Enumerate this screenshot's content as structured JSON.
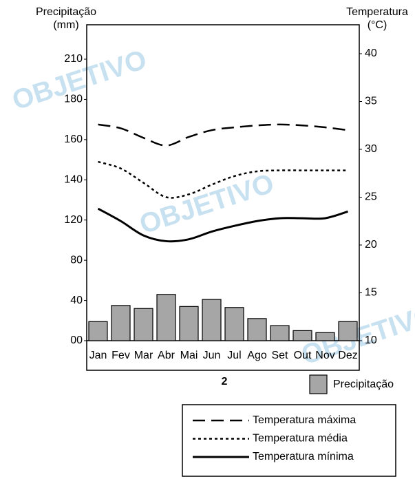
{
  "chart_data": {
    "type": "bar_line",
    "title": "2",
    "ylabel": [
      "Precipitação",
      "(mm)"
    ],
    "y2label": [
      "Temperatura",
      "(°C)"
    ],
    "watermark": "OBJETIVO",
    "categories": [
      "Jan",
      "Fev",
      "Mar",
      "Abr",
      "Mai",
      "Jun",
      "Jul",
      "Ago",
      "Set",
      "Out",
      "Nov",
      "Dez"
    ],
    "yticks": [
      {
        "value": 0,
        "label": "00"
      },
      40,
      80,
      120,
      140,
      160,
      180,
      210
    ],
    "ylim": [
      0,
      210
    ],
    "y2lim": [
      10,
      40
    ],
    "y2ticks": [
      10,
      15,
      20,
      25,
      30,
      35,
      40
    ],
    "series": [
      {
        "name": "Precipitação",
        "type": "bar",
        "color": "#a6a6a6",
        "values": [
          19,
          35,
          32,
          46,
          34,
          41,
          33,
          22,
          15,
          10,
          8,
          19
        ]
      },
      {
        "name": "Temperatura máxima",
        "type": "line",
        "axis": "y2",
        "color": "#000000",
        "dash": "dashed",
        "values": [
          32.6,
          32.2,
          31.2,
          30.4,
          31.3,
          32.0,
          32.3,
          32.5,
          32.6,
          32.5,
          32.3,
          32.0
        ]
      },
      {
        "name": "Temperatura média",
        "type": "line",
        "axis": "y2",
        "color": "#000000",
        "dash": "dotted",
        "values": [
          28.7,
          28.0,
          26.5,
          25.0,
          25.3,
          26.3,
          27.2,
          27.7,
          27.8,
          27.8,
          27.8,
          27.8
        ]
      },
      {
        "name": "Temperatura mínima",
        "type": "line",
        "axis": "y2",
        "color": "#000000",
        "dash": "solid",
        "values": [
          23.8,
          22.5,
          21.0,
          20.4,
          20.6,
          21.4,
          22.0,
          22.5,
          22.8,
          22.8,
          22.8,
          23.5
        ]
      }
    ]
  }
}
